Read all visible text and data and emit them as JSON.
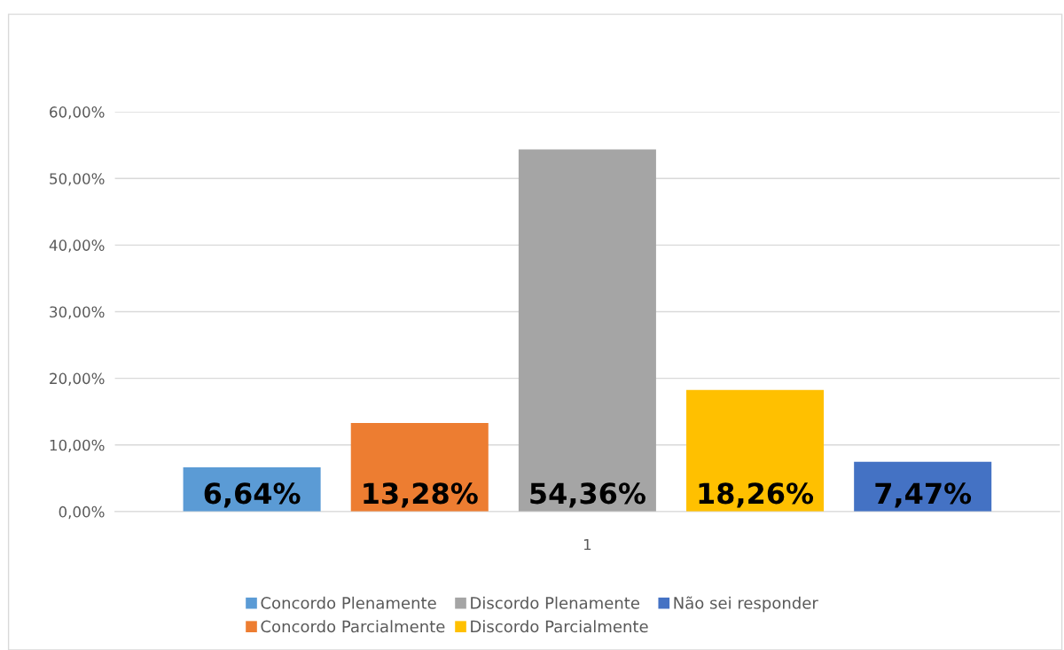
{
  "chart_data": {
    "type": "bar",
    "categories": [
      "1"
    ],
    "series": [
      {
        "name": "Concordo Plenamente",
        "color": "#5b9bd5",
        "values": [
          6.64
        ],
        "value_labels": [
          "6,64%"
        ]
      },
      {
        "name": "Concordo Parcialmente",
        "color": "#ed7d31",
        "values": [
          13.28
        ],
        "value_labels": [
          "13,28%"
        ]
      },
      {
        "name": "Discordo Plenamente",
        "color": "#a5a5a5",
        "values": [
          54.36
        ],
        "value_labels": [
          "54,36%"
        ]
      },
      {
        "name": "Discordo Parcialmente",
        "color": "#ffc000",
        "values": [
          18.26
        ],
        "value_labels": [
          "18,26%"
        ]
      },
      {
        "name": "Não sei responder",
        "color": "#4472c4",
        "values": [
          7.47
        ],
        "value_labels": [
          "7,47%"
        ]
      }
    ],
    "ylim": [
      0,
      60
    ],
    "yticks": [
      {
        "value": 0,
        "label": "0,00%"
      },
      {
        "value": 10,
        "label": "10,00%"
      },
      {
        "value": 20,
        "label": "20,00%"
      },
      {
        "value": 30,
        "label": "30,00%"
      },
      {
        "value": 40,
        "label": "40,00%"
      },
      {
        "value": 50,
        "label": "50,00%"
      },
      {
        "value": 60,
        "label": "60,00%"
      }
    ],
    "grid": "y",
    "legend": "bottom"
  }
}
